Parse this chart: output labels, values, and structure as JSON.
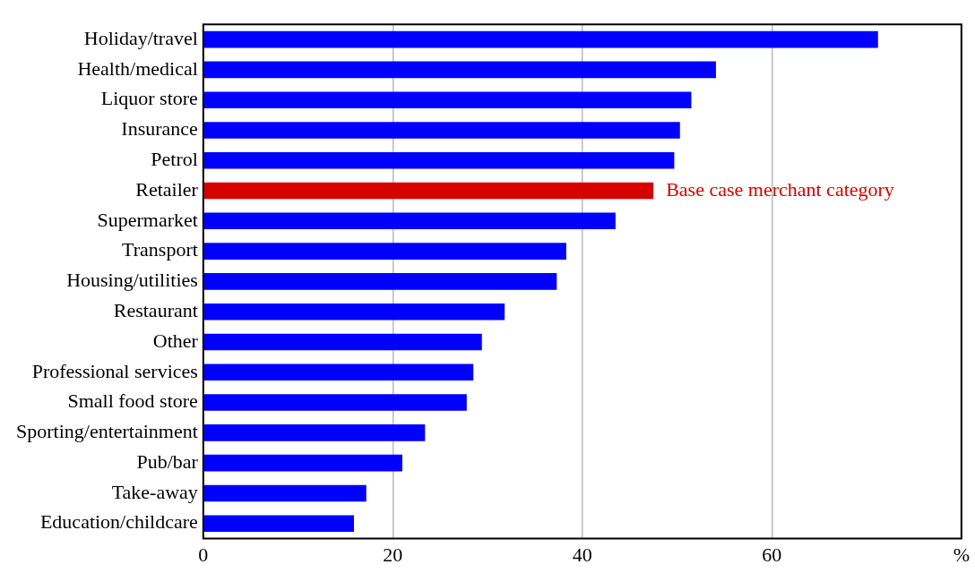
{
  "chart_data": {
    "type": "bar",
    "orientation": "horizontal",
    "categories": [
      "Holiday/travel",
      "Health/medical",
      "Liquor store",
      "Insurance",
      "Petrol",
      "Retailer",
      "Supermarket",
      "Transport",
      "Housing/utilities",
      "Restaurant",
      "Other",
      "Professional services",
      "Small food store",
      "Sporting/entertainment",
      "Pub/bar",
      "Take-away",
      "Education/childcare"
    ],
    "values": [
      71.2,
      54.1,
      51.5,
      50.3,
      49.7,
      47.5,
      43.5,
      38.3,
      37.3,
      31.8,
      29.4,
      28.5,
      27.8,
      23.4,
      21.0,
      17.2,
      15.9
    ],
    "colors": [
      "#0000ff",
      "#0000ff",
      "#0000ff",
      "#0000ff",
      "#0000ff",
      "#d70000",
      "#0000ff",
      "#0000ff",
      "#0000ff",
      "#0000ff",
      "#0000ff",
      "#0000ff",
      "#0000ff",
      "#0000ff",
      "#0000ff",
      "#0000ff",
      "#0000ff"
    ],
    "xlim": [
      0,
      80
    ],
    "xticks": [
      0,
      20,
      40,
      60,
      {
        "value": 80,
        "label": "%"
      }
    ],
    "grid": "x",
    "annotations": [
      {
        "text": "Base case merchant category",
        "x": 47.5,
        "y": "Retailer"
      }
    ]
  }
}
